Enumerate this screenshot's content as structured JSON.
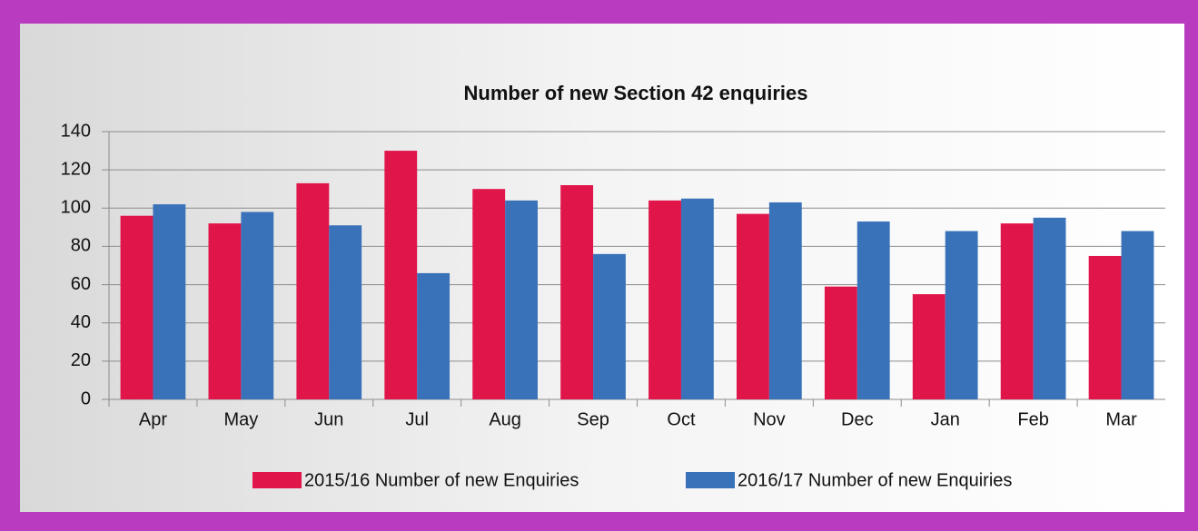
{
  "chart_data": {
    "type": "bar",
    "title": "Number of new Section 42 enquiries",
    "categories": [
      "Apr",
      "May",
      "Jun",
      "Jul",
      "Aug",
      "Sep",
      "Oct",
      "Nov",
      "Dec",
      "Jan",
      "Feb",
      "Mar"
    ],
    "series": [
      {
        "name": "2015/16 Number of new Enquiries",
        "color": "#e0154a",
        "values": [
          96,
          92,
          113,
          130,
          110,
          112,
          104,
          97,
          59,
          55,
          92,
          75
        ]
      },
      {
        "name": "2016/17 Number of new Enquiries",
        "color": "#3a72b9",
        "values": [
          102,
          98,
          91,
          66,
          104,
          76,
          105,
          103,
          93,
          88,
          95,
          88
        ]
      }
    ],
    "ylim": [
      0,
      140
    ],
    "yticks": [
      0,
      20,
      40,
      60,
      80,
      100,
      120,
      140
    ],
    "grid": true,
    "legend": "bottom"
  }
}
